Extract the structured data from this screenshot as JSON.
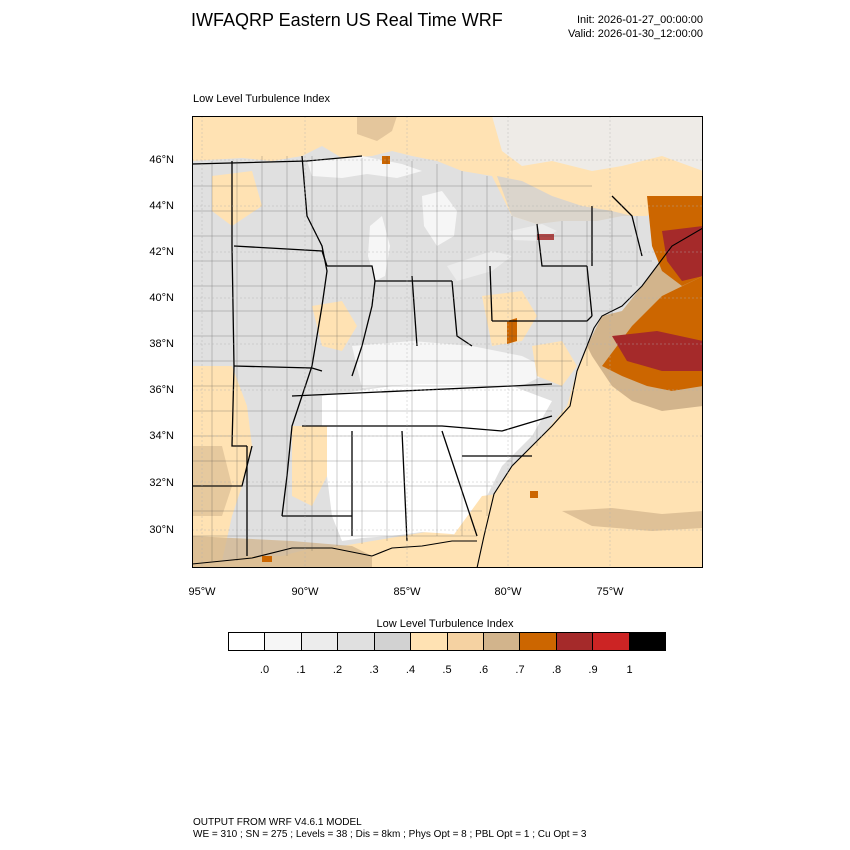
{
  "header": {
    "title": "IWFAQRP Eastern US Real Time WRF",
    "init": "Init: 2026-01-27_00:00:00",
    "valid": "Valid: 2026-01-30_12:00:00"
  },
  "panel": {
    "title": "Low Level Turbulence Index"
  },
  "map": {
    "lat_labels": [
      "46°N",
      "44°N",
      "42°N",
      "40°N",
      "38°N",
      "36°N",
      "34°N",
      "32°N",
      "30°N"
    ],
    "lon_labels": [
      "95°W",
      "90°W",
      "85°W",
      "80°W",
      "75°W"
    ]
  },
  "colorbar": {
    "title": "Low Level Turbulence Index",
    "labels": [
      ".0",
      ".1",
      ".2",
      ".3",
      ".4",
      ".5",
      ".6",
      ".7",
      ".8",
      ".9",
      "1"
    ],
    "colors": [
      "#ffffff",
      "#f6f6f6",
      "#ececec",
      "#e0e0e0",
      "#d2d2d2",
      "#ffe2b3",
      "#f5d2a2",
      "#d2b48c",
      "#cc6600",
      "#a52a2a",
      "#cc2424",
      "#000000"
    ]
  },
  "footer": {
    "line1": "OUTPUT FROM WRF V4.6.1 MODEL",
    "line2": "WE = 310 ; SN = 275 ; Levels = 38 ; Dis = 8km ; Phys Opt = 8 ; PBL Opt = 1 ; Cu Opt = 3"
  }
}
